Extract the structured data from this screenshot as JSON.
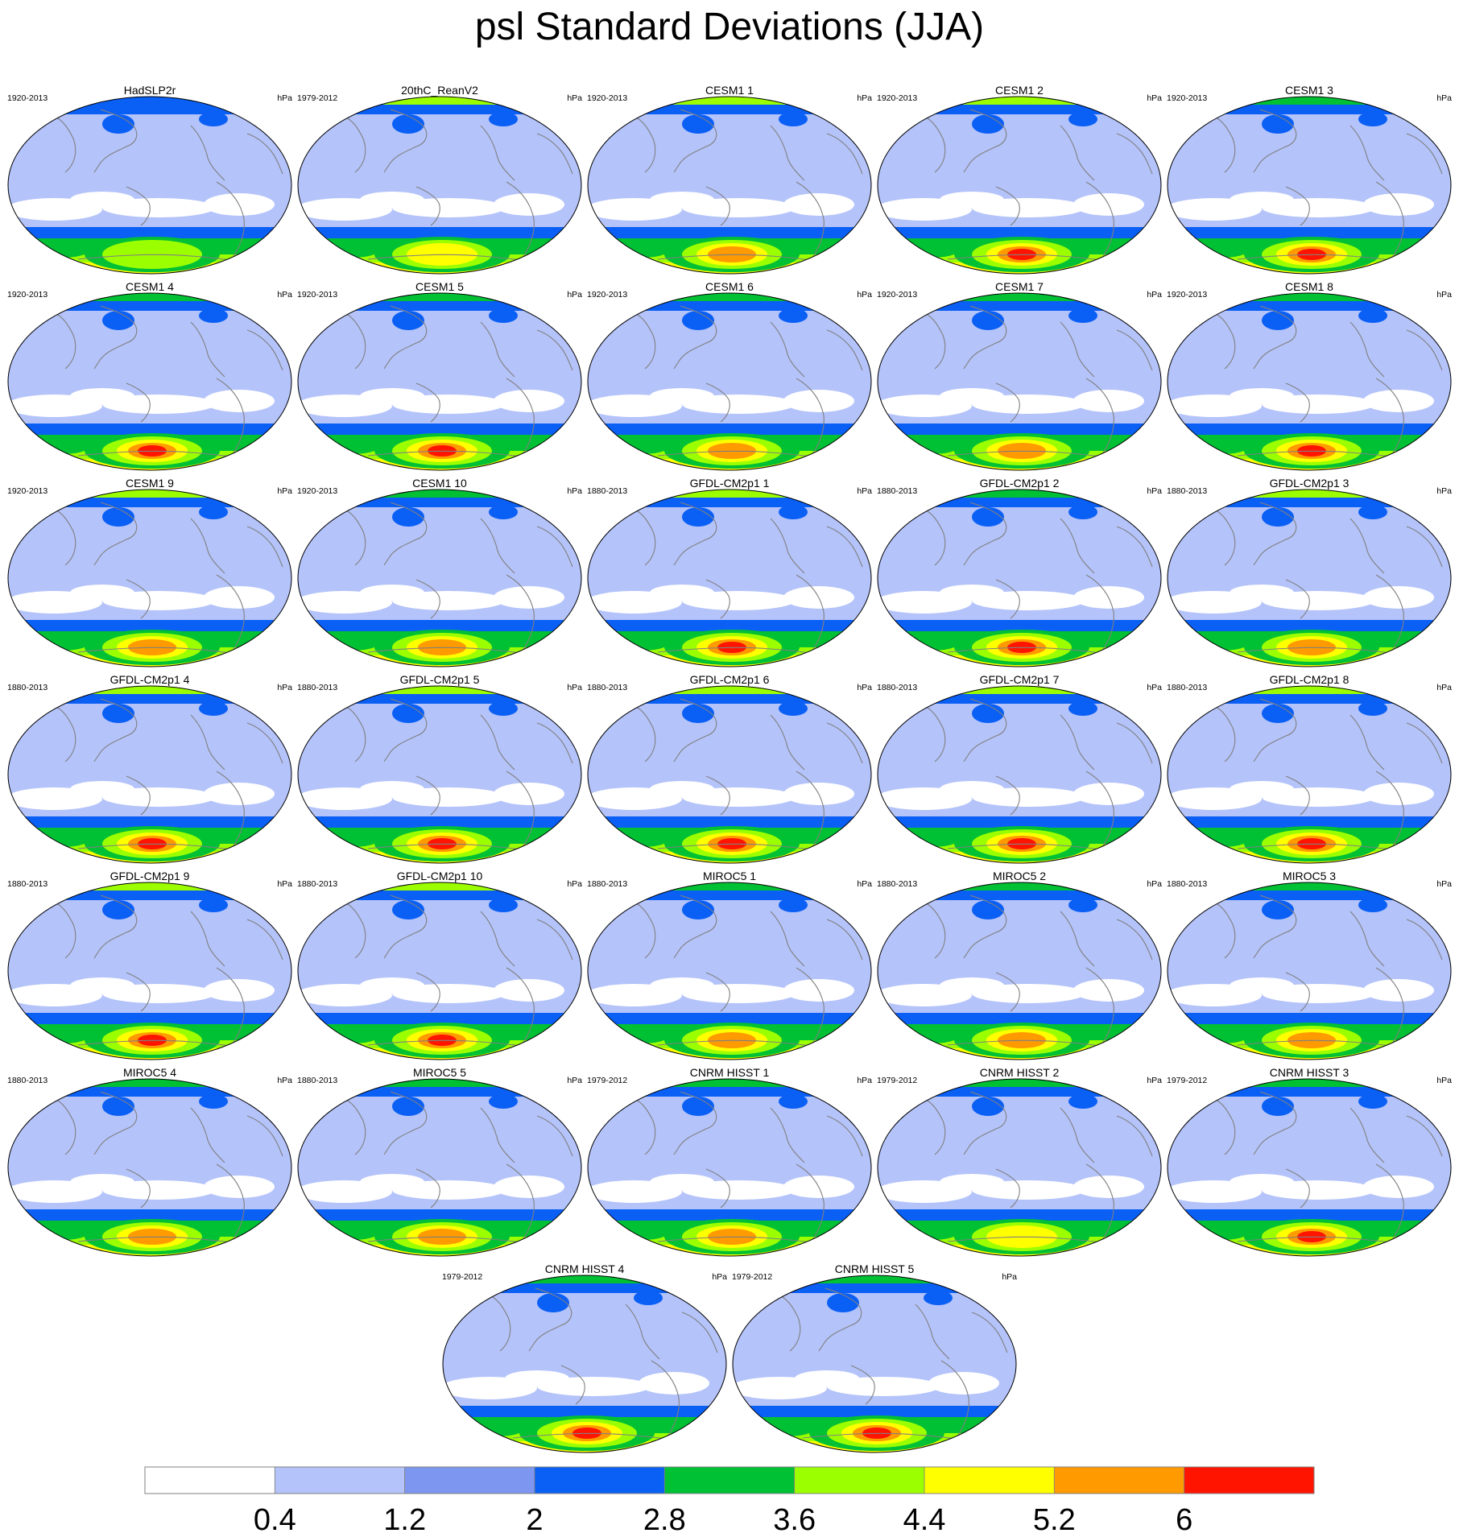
{
  "figure": {
    "title": "psl Standard Deviations (JJA)",
    "units": "hPa"
  },
  "panels": [
    {
      "title": "HadSLP2r",
      "period": "1920-2013",
      "units": "hPa",
      "south_max": 4.4,
      "north": 2.0
    },
    {
      "title": "20thC_ReanV2",
      "period": "1979-2012",
      "units": "hPa",
      "south_max": 5.2,
      "north": 3.6
    },
    {
      "title": "CESM1 1",
      "period": "1920-2013",
      "units": "hPa",
      "south_max": 6.0,
      "north": 3.6
    },
    {
      "title": "CESM1 2",
      "period": "1920-2013",
      "units": "hPa",
      "south_max": 6.8,
      "north": 3.6
    },
    {
      "title": "CESM1 3",
      "period": "1920-2013",
      "units": "hPa",
      "south_max": 6.8,
      "north": 2.8
    },
    {
      "title": "CESM1 4",
      "period": "1920-2013",
      "units": "hPa",
      "south_max": 6.8,
      "north": 2.8
    },
    {
      "title": "CESM1 5",
      "period": "1920-2013",
      "units": "hPa",
      "south_max": 6.8,
      "north": 2.8
    },
    {
      "title": "CESM1 6",
      "period": "1920-2013",
      "units": "hPa",
      "south_max": 6.0,
      "north": 2.8
    },
    {
      "title": "CESM1 7",
      "period": "1920-2013",
      "units": "hPa",
      "south_max": 6.0,
      "north": 2.8
    },
    {
      "title": "CESM1 8",
      "period": "1920-2013",
      "units": "hPa",
      "south_max": 6.8,
      "north": 2.8
    },
    {
      "title": "CESM1 9",
      "period": "1920-2013",
      "units": "hPa",
      "south_max": 6.0,
      "north": 3.6
    },
    {
      "title": "CESM1 10",
      "period": "1920-2013",
      "units": "hPa",
      "south_max": 6.0,
      "north": 2.8
    },
    {
      "title": "GFDL-CM2p1 1",
      "period": "1880-2013",
      "units": "hPa",
      "south_max": 6.8,
      "north": 3.6
    },
    {
      "title": "GFDL-CM2p1 2",
      "period": "1880-2013",
      "units": "hPa",
      "south_max": 6.8,
      "north": 2.8
    },
    {
      "title": "GFDL-CM2p1 3",
      "period": "1880-2013",
      "units": "hPa",
      "south_max": 6.0,
      "north": 3.6
    },
    {
      "title": "GFDL-CM2p1 4",
      "period": "1880-2013",
      "units": "hPa",
      "south_max": 6.8,
      "north": 3.6
    },
    {
      "title": "GFDL-CM2p1 5",
      "period": "1880-2013",
      "units": "hPa",
      "south_max": 6.8,
      "north": 3.6
    },
    {
      "title": "GFDL-CM2p1 6",
      "period": "1880-2013",
      "units": "hPa",
      "south_max": 6.8,
      "north": 3.6
    },
    {
      "title": "GFDL-CM2p1 7",
      "period": "1880-2013",
      "units": "hPa",
      "south_max": 6.8,
      "north": 3.6
    },
    {
      "title": "GFDL-CM2p1 8",
      "period": "1880-2013",
      "units": "hPa",
      "south_max": 6.8,
      "north": 3.6
    },
    {
      "title": "GFDL-CM2p1 9",
      "period": "1880-2013",
      "units": "hPa",
      "south_max": 6.8,
      "north": 3.6
    },
    {
      "title": "GFDL-CM2p1 10",
      "period": "1880-2013",
      "units": "hPa",
      "south_max": 6.8,
      "north": 3.6
    },
    {
      "title": "MIROC5 1",
      "period": "1880-2013",
      "units": "hPa",
      "south_max": 6.0,
      "north": 2.8
    },
    {
      "title": "MIROC5 2",
      "period": "1880-2013",
      "units": "hPa",
      "south_max": 6.0,
      "north": 2.8
    },
    {
      "title": "MIROC5 3",
      "period": "1880-2013",
      "units": "hPa",
      "south_max": 6.0,
      "north": 2.8
    },
    {
      "title": "MIROC5 4",
      "period": "1880-2013",
      "units": "hPa",
      "south_max": 6.0,
      "north": 2.8
    },
    {
      "title": "MIROC5 5",
      "period": "1880-2013",
      "units": "hPa",
      "south_max": 6.0,
      "north": 2.8
    },
    {
      "title": "CNRM HISST 1",
      "period": "1979-2012",
      "units": "hPa",
      "south_max": 6.0,
      "north": 2.8
    },
    {
      "title": "CNRM HISST 2",
      "period": "1979-2012",
      "units": "hPa",
      "south_max": 5.2,
      "north": 2.8
    },
    {
      "title": "CNRM HISST 3",
      "period": "1979-2012",
      "units": "hPa",
      "south_max": 6.8,
      "north": 2.8
    },
    {
      "title": "CNRM HISST 4",
      "period": "1979-2012",
      "units": "hPa",
      "south_max": 6.8,
      "north": 2.8
    },
    {
      "title": "CNRM HISST 5",
      "period": "1979-2012",
      "units": "hPa",
      "south_max": 6.8,
      "north": 2.8
    }
  ],
  "colorbar": {
    "boundaries": [
      "0.4",
      "1.2",
      "2",
      "2.8",
      "3.6",
      "4.4",
      "5.2",
      "6"
    ],
    "colors": [
      "#ffffff",
      "#b4c3fa",
      "#7d96f0",
      "#0a5ff5",
      "#00c034",
      "#9cff00",
      "#ffff00",
      "#ff9a00",
      "#ff1400"
    ]
  }
}
